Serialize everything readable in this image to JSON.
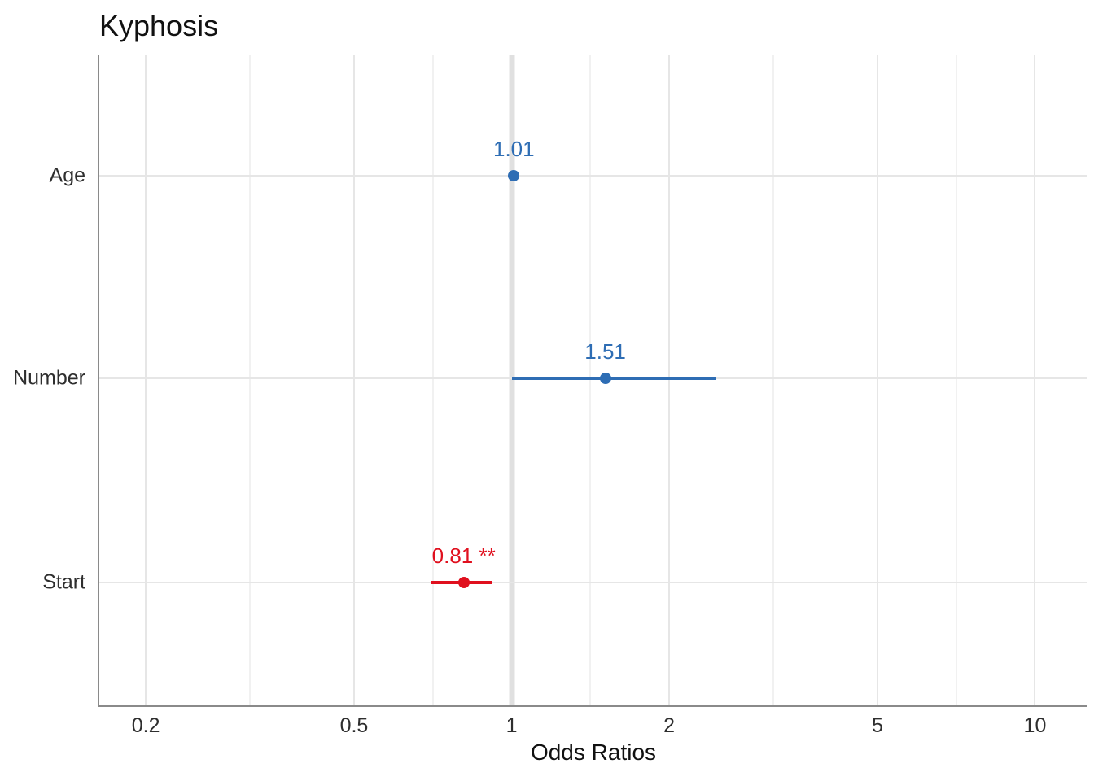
{
  "chart_data": {
    "type": "scatter",
    "variant": "forest-dot-whisker",
    "title": "Kyphosis",
    "xlabel": "Odds Ratios",
    "ylabel": "",
    "x_scale": "log10",
    "xlim": [
      0.163,
      12.6
    ],
    "x_ticks": [
      0.2,
      0.5,
      1,
      2,
      5,
      10
    ],
    "x_tick_labels": [
      "0.2",
      "0.5",
      "1",
      "2",
      "5",
      "10"
    ],
    "x_minor_gridlines": [
      0.316,
      0.707,
      1.414,
      3.162,
      7.071
    ],
    "reference_line_x": 1,
    "grid": true,
    "legend": "none",
    "categories": [
      "Age",
      "Number",
      "Start"
    ],
    "row_fractions": [
      0.185,
      0.497,
      0.812
    ],
    "points": [
      {
        "term": "Age",
        "estimate": 1.01,
        "ci_low": 1.0,
        "ci_high": 1.02,
        "label": "1.01",
        "color": "#2E6DB4",
        "direction": "positive",
        "significance": ""
      },
      {
        "term": "Number",
        "estimate": 1.51,
        "ci_low": 1.0,
        "ci_high": 2.46,
        "label": "1.51",
        "color": "#2E6DB4",
        "direction": "positive",
        "significance": ""
      },
      {
        "term": "Start",
        "estimate": 0.81,
        "ci_low": 0.7,
        "ci_high": 0.92,
        "label": "0.81 **",
        "color": "#E0101E",
        "direction": "negative",
        "significance": "**"
      }
    ],
    "colors": {
      "positive": "#2E6DB4",
      "negative": "#E0101E",
      "major_gridline": "#E6E6E6",
      "minor_gridline": "#F1F1F1",
      "reference_line": "#E0E0E0",
      "axis_line": "#8A8A8A",
      "text": "#2E2E2E",
      "title_text": "#111111"
    }
  }
}
